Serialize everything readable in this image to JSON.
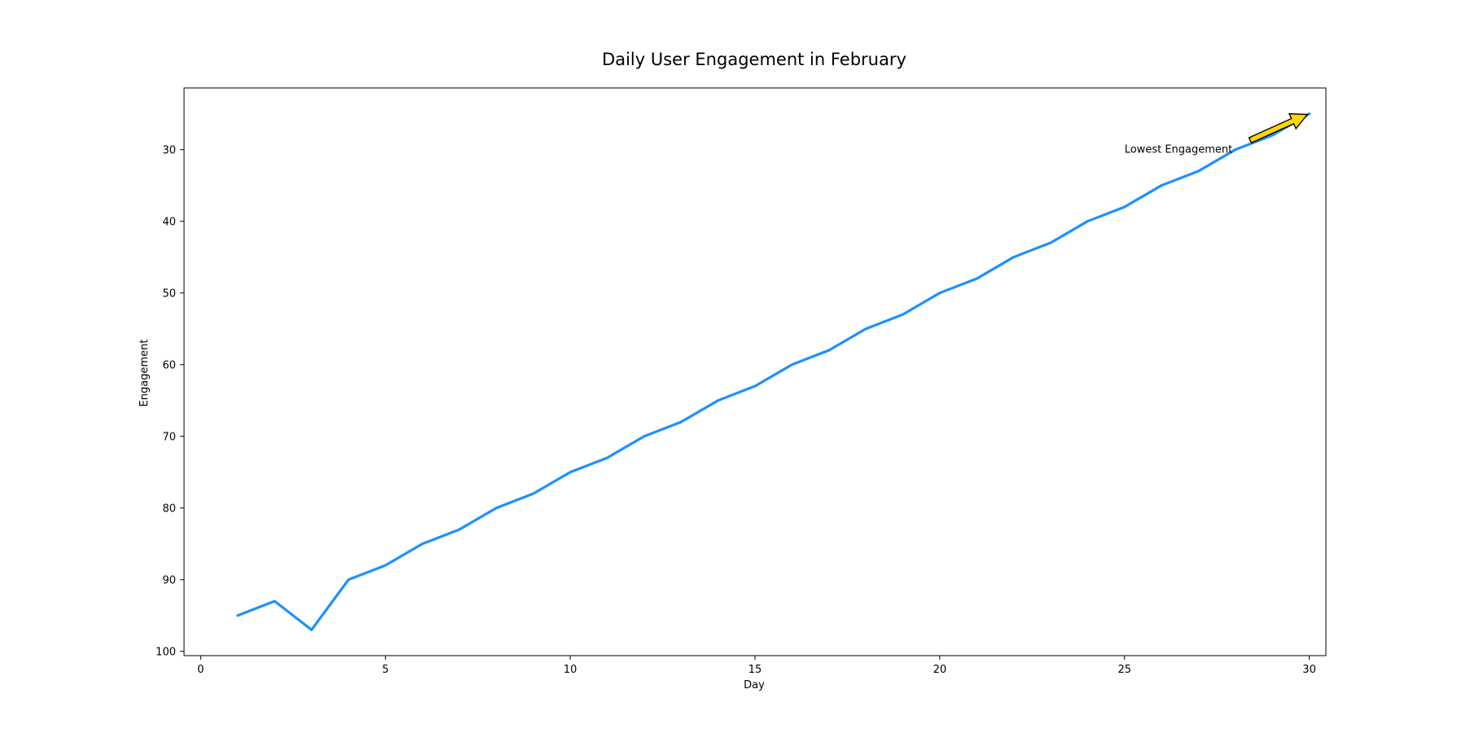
{
  "chart_data": {
    "type": "line",
    "title": "Daily User Engagement in February",
    "xlabel": "Day",
    "ylabel": "Engagement",
    "xlim": [
      -0.45,
      30.45
    ],
    "ylim": [
      100.6,
      21.4
    ],
    "y_inverted": true,
    "x_ticks": [
      0,
      5,
      10,
      15,
      20,
      25,
      30
    ],
    "y_ticks": [
      30,
      40,
      50,
      60,
      70,
      80,
      90,
      100
    ],
    "grid": false,
    "line_color": "#1E90FF",
    "series": [
      {
        "x": [
          1,
          2,
          3,
          4,
          5,
          6,
          7,
          8,
          9,
          10,
          11,
          12,
          13,
          14,
          15,
          16,
          17,
          18,
          19,
          20,
          21,
          22,
          23,
          24,
          25,
          26,
          27,
          28,
          29,
          30
        ],
        "values": [
          95,
          93,
          97,
          90,
          88,
          85,
          83,
          80,
          78,
          75,
          73,
          70,
          68,
          65,
          63,
          60,
          58,
          55,
          53,
          50,
          48,
          45,
          43,
          40,
          38,
          35,
          33,
          30,
          28,
          25
        ]
      }
    ],
    "annotation": {
      "text": "Lowest Engagement",
      "point": [
        30,
        25
      ],
      "text_anchor_point": [
        25,
        30
      ],
      "arrow_color": "#FFD700"
    }
  }
}
